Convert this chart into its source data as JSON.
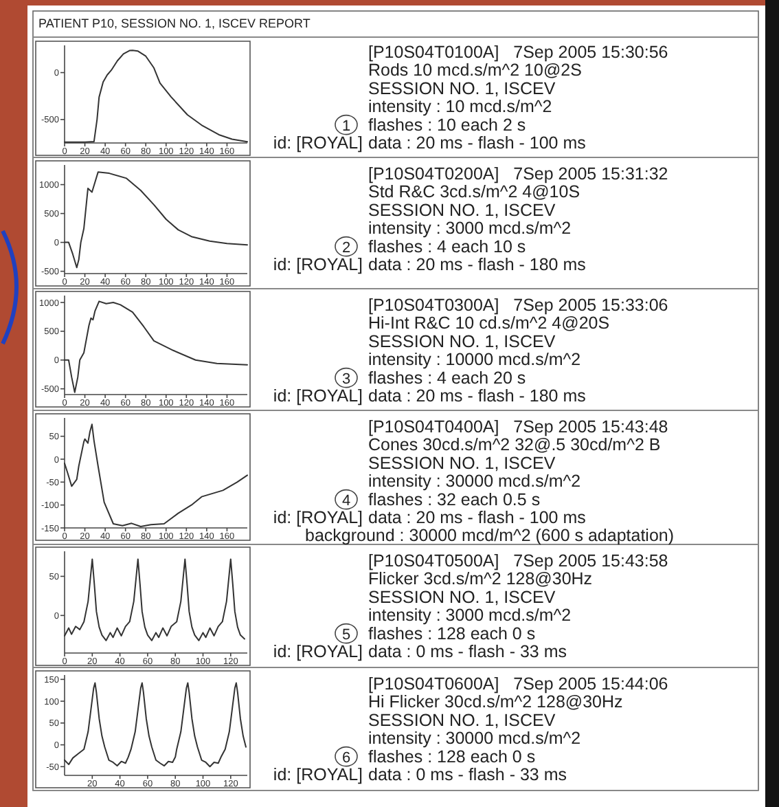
{
  "chart_data": [
    {
      "type": "other",
      "title": "PATIENT P10, SESSION NO. 1, ISCEV REPORT"
    },
    {
      "type": "line",
      "xlim": [
        0,
        180
      ],
      "xticks": [
        0,
        20,
        40,
        60,
        80,
        100,
        120,
        140,
        160
      ],
      "ylim": [
        -750,
        290
      ],
      "yticks": [
        0,
        -500
      ],
      "series": [
        {
          "color": "#333333",
          "x": [
            0,
            20,
            29,
            32,
            34,
            38,
            42,
            46,
            52,
            58,
            64,
            67,
            72,
            80,
            88,
            94,
            105,
            121,
            135,
            152,
            165,
            180
          ],
          "values": [
            -740,
            -740,
            -735,
            -500,
            -262,
            -100,
            -25,
            25,
            125,
            200,
            235,
            237,
            230,
            175,
            50,
            -112,
            -260,
            -450,
            -560,
            -662,
            -710,
            -737
          ]
        }
      ]
    },
    {
      "type": "other",
      "title": "1",
      "subtitle": "id: [ROYAL]",
      "annotations": [
        "[P10S04T0100A]   7Sep 2005 15:30:56",
        "Rods 10 mcd.s/m^2 10@2S",
        "SESSION NO. 1, ISCEV",
        "intensity : 10 mcd.s/m^2",
        "flashes : 10 each 2 s",
        "data : 20 ms - flash - 100 ms"
      ]
    },
    {
      "type": "line",
      "xlim": [
        0,
        180
      ],
      "xticks": [
        0,
        20,
        40,
        60,
        80,
        100,
        120,
        140,
        160
      ],
      "ylim": [
        -540,
        1340
      ],
      "yticks": [
        1000,
        500,
        0,
        -500
      ],
      "series": [
        {
          "color": "#333333",
          "x": [
            0,
            4,
            8,
            12,
            14,
            16,
            19,
            23,
            27,
            33,
            44,
            61,
            75,
            88,
            100,
            112,
            125,
            143,
            160,
            180
          ],
          "values": [
            0,
            0,
            -200,
            -435,
            -300,
            0,
            239,
            935,
            870,
            1217,
            1196,
            1109,
            900,
            652,
            400,
            217,
            100,
            22,
            -20,
            -43
          ]
        }
      ]
    },
    {
      "type": "other",
      "title": "2",
      "subtitle": "id: [ROYAL]",
      "annotations": [
        "[P10S04T0200A]   7Sep 2005 15:31:32",
        "Std R&C 3cd.s/m^2 4@10S",
        "SESSION NO. 1, ISCEV",
        "intensity : 3000 mcd.s/m^2",
        "flashes : 4 each 10 s",
        "data : 20 ms - flash - 180 ms"
      ]
    },
    {
      "type": "line",
      "xlim": [
        0,
        180
      ],
      "xticks": [
        0,
        20,
        40,
        60,
        80,
        100,
        120,
        140,
        160
      ],
      "ylim": [
        -600,
        1120
      ],
      "yticks": [
        1000,
        500,
        0,
        -500
      ],
      "series": [
        {
          "color": "#333333",
          "x": [
            0,
            4,
            7,
            10,
            13,
            15,
            19,
            24,
            26,
            28,
            30,
            34,
            41,
            48,
            55,
            67,
            78,
            88,
            107,
            129,
            150,
            180
          ],
          "values": [
            0,
            0,
            -300,
            -562,
            -300,
            0,
            125,
            600,
            729,
            700,
            854,
            1020,
            979,
            1000,
            960,
            833,
            580,
            333,
            167,
            0,
            -60,
            -83
          ]
        }
      ]
    },
    {
      "type": "other",
      "title": "3",
      "subtitle": "id: [ROYAL]",
      "annotations": [
        "[P10S04T0300A]   7Sep 2005 15:33:06",
        "Hi-Int R&C 10 cd.s/m^2 4@20S",
        "SESSION NO. 1, ISCEV",
        "intensity : 10000 mcd.s/m^2",
        "flashes : 4 each 20 s",
        "data : 20 ms - flash - 180 ms"
      ]
    },
    {
      "type": "line",
      "xlim": [
        0,
        180
      ],
      "xticks": [
        0,
        20,
        40,
        60,
        80,
        100,
        120,
        140,
        160
      ],
      "ylim": [
        -150,
        90
      ],
      "yticks": [
        50,
        0,
        -50,
        -100,
        -150
      ],
      "series": [
        {
          "color": "#333333",
          "x": [
            0,
            3,
            7,
            10,
            12,
            14,
            19,
            20,
            23,
            25,
            27,
            29,
            33,
            39,
            48,
            57,
            66,
            75,
            85,
            98,
            112,
            125,
            135,
            156,
            170,
            180
          ],
          "values": [
            -9,
            -30,
            -59,
            -50,
            -44,
            -15,
            38,
            44,
            35,
            60,
            76,
            40,
            -15,
            -94,
            -141,
            -145,
            -140,
            -147,
            -143,
            -141,
            -118,
            -100,
            -82,
            -68,
            -50,
            -35
          ]
        }
      ]
    },
    {
      "type": "other",
      "title": "4",
      "subtitle": "id: [ROYAL]",
      "annotations": [
        "[P10S04T0400A]   7Sep 2005 15:43:48",
        "Cones 30cd.s/m^2 32@.5 30cd/m^2 B",
        "SESSION NO. 1, ISCEV",
        "intensity : 30000 mcd.s/m^2",
        "flashes : 32 each 0.5 s",
        "data : 20 ms - flash - 100 ms",
        "background : 30000 mcd/m^2 (600 s adaptation)"
      ]
    },
    {
      "type": "line",
      "xlim": [
        0,
        132
      ],
      "xticks": [
        0,
        20,
        40,
        60,
        80,
        100,
        120
      ],
      "ylim": [
        -48,
        82
      ],
      "yticks": [
        50,
        0
      ],
      "series": [
        {
          "color": "#333333",
          "x": [
            0,
            3,
            5,
            8,
            11,
            14,
            17,
            18.5,
            20,
            21.5,
            23,
            25,
            27,
            30,
            33,
            35,
            38,
            41,
            44,
            47,
            50,
            51.5,
            53,
            54.5,
            56,
            58,
            60,
            63,
            66,
            68,
            71,
            74,
            77,
            81,
            84,
            85.5,
            87,
            88.5,
            90,
            92,
            94,
            97,
            100,
            102,
            105,
            108,
            111,
            114,
            117,
            118.5,
            120,
            121.5,
            123,
            125,
            127,
            130
          ],
          "values": [
            -26,
            -16,
            -24,
            -14,
            -18,
            -8,
            18,
            45,
            72,
            40,
            5,
            -15,
            -25,
            -32,
            -22,
            -28,
            -16,
            -26,
            -14,
            -8,
            18,
            45,
            72,
            40,
            5,
            -15,
            -25,
            -32,
            -22,
            -28,
            -16,
            -26,
            -14,
            -8,
            18,
            45,
            72,
            40,
            5,
            -15,
            -25,
            -32,
            -22,
            -28,
            -16,
            -26,
            -14,
            -8,
            18,
            45,
            72,
            40,
            5,
            -15,
            -25,
            -30
          ]
        }
      ]
    },
    {
      "type": "other",
      "title": "5",
      "subtitle": "id: [ROYAL]",
      "annotations": [
        "[P10S04T0500A]   7Sep 2005 15:43:58",
        "Flicker 3cd.s/m^2 128@30Hz",
        "SESSION NO. 1, ISCEV",
        "intensity : 3000 mcd.s/m^2",
        "flashes : 128 each 0 s",
        "data : 0 ms - flash - 33 ms"
      ]
    },
    {
      "type": "line",
      "xlim": [
        0,
        132
      ],
      "xticks": [
        20,
        40,
        60,
        80,
        100,
        120
      ],
      "ylim": [
        -70,
        160
      ],
      "yticks": [
        150,
        100,
        50,
        0,
        -50
      ],
      "series": [
        {
          "color": "#333333",
          "x": [
            0,
            3,
            6,
            10,
            14,
            17,
            19,
            21,
            22,
            23,
            25,
            27,
            29,
            32,
            35,
            38,
            41,
            44,
            46,
            48,
            51,
            53,
            55,
            56,
            57,
            59,
            61,
            63,
            66,
            69,
            72,
            75,
            78,
            80,
            81,
            84,
            86,
            88,
            89,
            90,
            92,
            94,
            96,
            99,
            102,
            105,
            108,
            111,
            113,
            116,
            119,
            121,
            123,
            124,
            125,
            127,
            129,
            131
          ],
          "values": [
            -35,
            -45,
            -30,
            -20,
            -10,
            30,
            80,
            130,
            142,
            120,
            60,
            20,
            -5,
            -35,
            -40,
            -48,
            -38,
            -42,
            -28,
            -10,
            30,
            80,
            130,
            142,
            120,
            60,
            20,
            -5,
            -35,
            -42,
            -48,
            -38,
            -40,
            -28,
            -10,
            30,
            80,
            130,
            142,
            120,
            60,
            20,
            -5,
            -35,
            -40,
            -50,
            -40,
            -42,
            -28,
            -10,
            30,
            80,
            130,
            142,
            120,
            60,
            20,
            -5
          ]
        }
      ]
    },
    {
      "type": "other",
      "title": "6",
      "subtitle": "id: [ROYAL]",
      "annotations": [
        "[P10S04T0600A]   7Sep 2005 15:44:06",
        "Hi Flicker 30cd.s/m^2 128@30Hz",
        "SESSION NO. 1, ISCEV",
        "intensity : 30000 mcd.s/m^2",
        "flashes : 128 each 0 s",
        "data : 0 ms - flash - 33 ms"
      ]
    }
  ]
}
